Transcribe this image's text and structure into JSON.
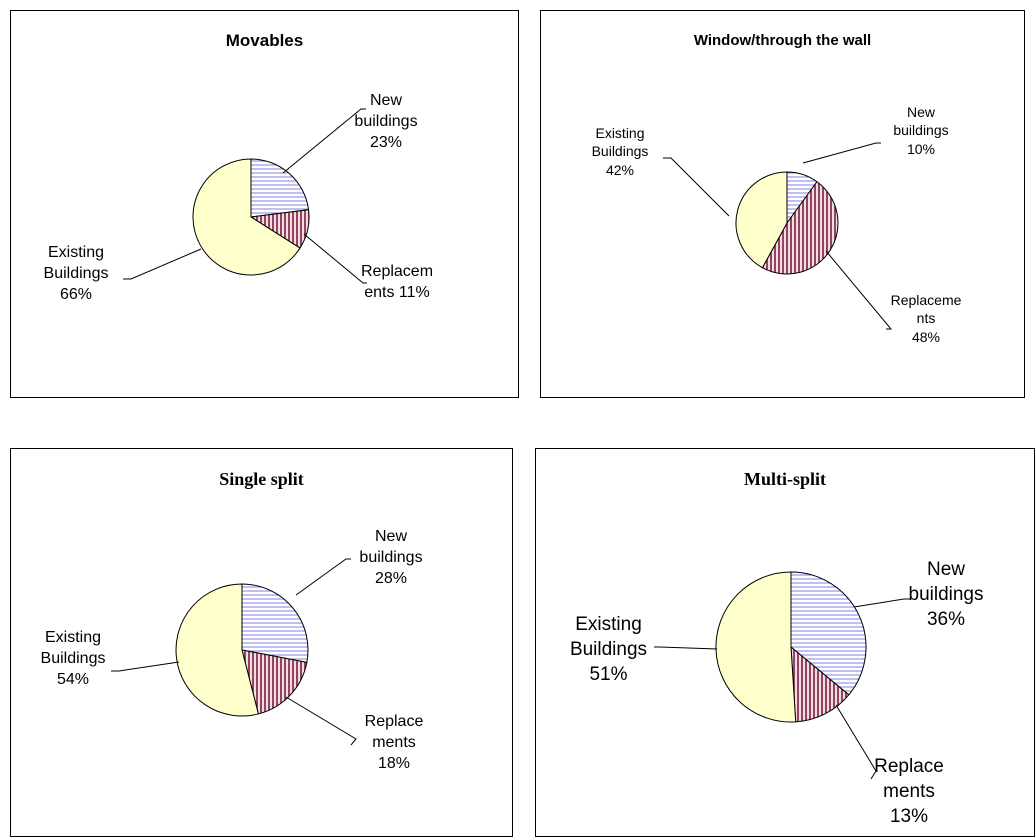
{
  "colors": {
    "existing": "#ffffcc",
    "new_lines": "#8080e0",
    "replacement_fill": "#a85060",
    "replacement_lines": "#7a1f3d",
    "stroke": "#000000"
  },
  "chart_data": [
    {
      "type": "pie",
      "title": "Movables",
      "slices": [
        {
          "label": "New buildings",
          "value": 23,
          "display": [
            "New",
            "buildings",
            "23%"
          ],
          "pattern": "horizontal-lines"
        },
        {
          "label": "Replacements",
          "value": 11,
          "display": [
            "Replacem",
            "ents 11%"
          ],
          "pattern": "vertical-lines"
        },
        {
          "label": "Existing Buildings",
          "value": 66,
          "display": [
            "Existing",
            "Buildings",
            "66%"
          ],
          "pattern": "solid"
        }
      ]
    },
    {
      "type": "pie",
      "title": "Window/through the wall",
      "slices": [
        {
          "label": "New buildings",
          "value": 10,
          "display": [
            "New",
            "buildings",
            "10%"
          ],
          "pattern": "horizontal-lines"
        },
        {
          "label": "Replacements",
          "value": 48,
          "display": [
            "Replaceme",
            "nts",
            "48%"
          ],
          "pattern": "vertical-lines"
        },
        {
          "label": "Existing Buildings",
          "value": 42,
          "display": [
            "Existing",
            "Buildings",
            "42%"
          ],
          "pattern": "solid"
        }
      ]
    },
    {
      "type": "pie",
      "title": "Single split",
      "slices": [
        {
          "label": "New buildings",
          "value": 28,
          "display": [
            "New",
            "buildings",
            "28%"
          ],
          "pattern": "horizontal-lines"
        },
        {
          "label": "Replacements",
          "value": 18,
          "display": [
            "Replace",
            "ments",
            "18%"
          ],
          "pattern": "vertical-lines"
        },
        {
          "label": "Existing Buildings",
          "value": 54,
          "display": [
            "Existing",
            "Buildings",
            "54%"
          ],
          "pattern": "solid"
        }
      ]
    },
    {
      "type": "pie",
      "title": "Multi-split",
      "slices": [
        {
          "label": "New buildings",
          "value": 36,
          "display": [
            "New",
            "buildings",
            "36%"
          ],
          "pattern": "horizontal-lines"
        },
        {
          "label": "Replacements",
          "value": 13,
          "display": [
            "Replace",
            "ments",
            "13%"
          ],
          "pattern": "vertical-lines"
        },
        {
          "label": "Existing Buildings",
          "value": 51,
          "display": [
            "Existing",
            "Buildings",
            "51%"
          ],
          "pattern": "solid"
        }
      ]
    }
  ]
}
